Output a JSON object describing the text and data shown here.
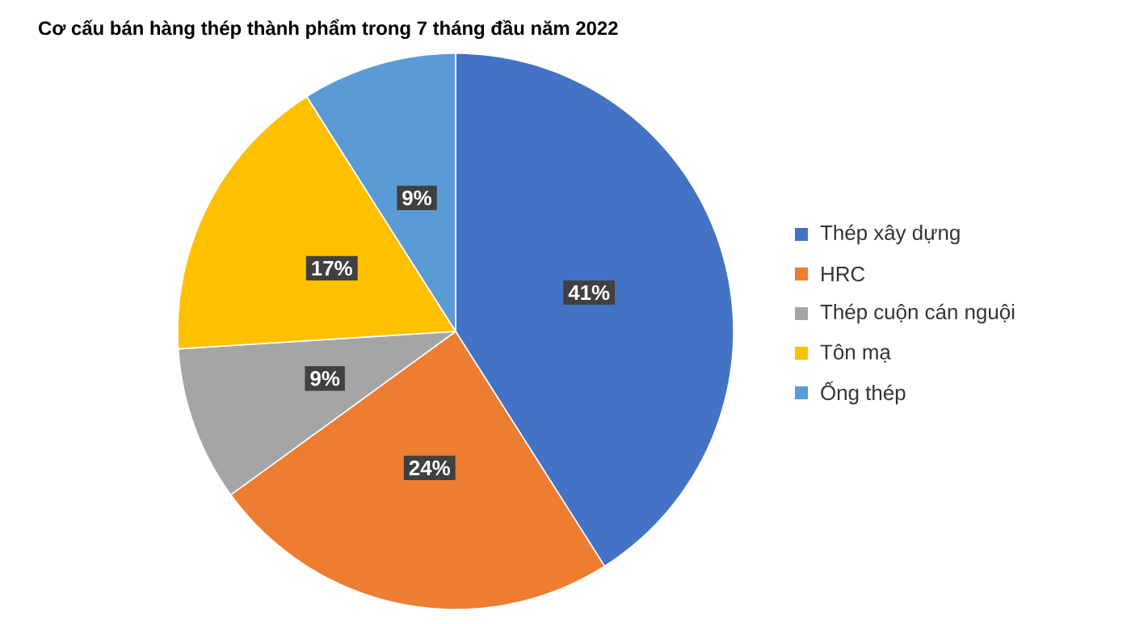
{
  "chart_data": {
    "type": "pie",
    "title": "Cơ cấu bán hàng thép thành phẩm trong 7 tháng đầu năm 2022",
    "categories": [
      "Thép xây dựng",
      "HRC",
      "Thép cuộn cán nguội",
      "Tôn mạ",
      "Ống thép"
    ],
    "values": [
      41,
      24,
      9,
      17,
      9
    ],
    "value_labels": [
      "41%",
      "24%",
      "9%",
      "17%",
      "9%"
    ],
    "colors": [
      "#4472c4",
      "#ed7d31",
      "#a5a5a5",
      "#ffc000",
      "#5b9bd5"
    ],
    "legend": "right"
  }
}
